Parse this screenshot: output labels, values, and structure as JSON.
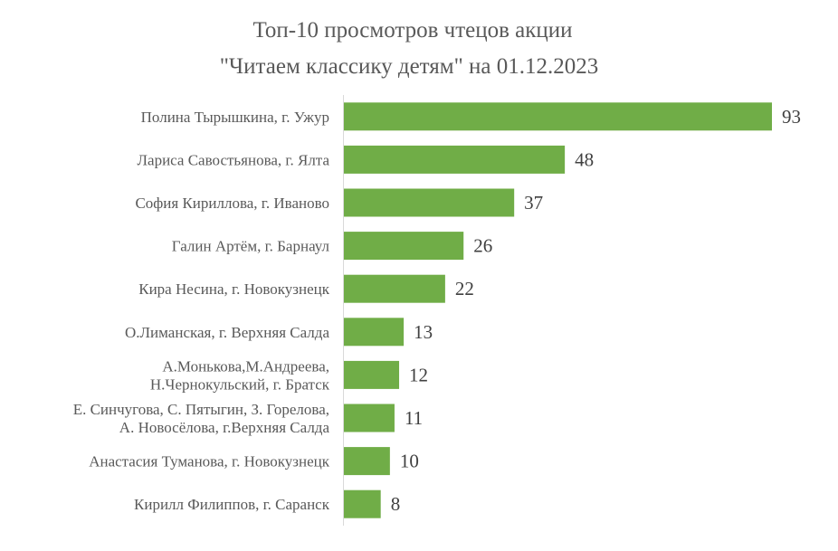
{
  "chart_data": {
    "type": "bar",
    "orientation": "horizontal",
    "title": [
      "Топ-10 просмотров чтецов акции",
      "\"Читаем классику детям\" на 01.12.2023"
    ],
    "xlabel": "",
    "ylabel": "",
    "grid": false,
    "legend": "none",
    "bar_color": "#70AD47",
    "categories": [
      [
        "Полина Тырышкина, г. Ужур"
      ],
      [
        "Лариса Савостьянова, г. Ялта"
      ],
      [
        "София Кириллова, г. Иваново"
      ],
      [
        "Галин Артём, г. Барнаул"
      ],
      [
        "Кира Несина, г. Новокузнецк"
      ],
      [
        "О.Лиманская, г. Верхняя Салда"
      ],
      [
        "А.Монькова,М.Андреева,",
        "Н.Чернокульский, г. Братск"
      ],
      [
        "Е. Синчугова, С. Пятыгин, З. Горелова,",
        "А. Новосёлова, г.Верхняя Салда"
      ],
      [
        "Анастасия Туманова, г. Новокузнецк"
      ],
      [
        "Кирилл Филиппов, г. Саранск"
      ]
    ],
    "values": [
      93,
      48,
      37,
      26,
      22,
      13,
      12,
      11,
      10,
      8
    ],
    "xlim": [
      0,
      93
    ]
  }
}
